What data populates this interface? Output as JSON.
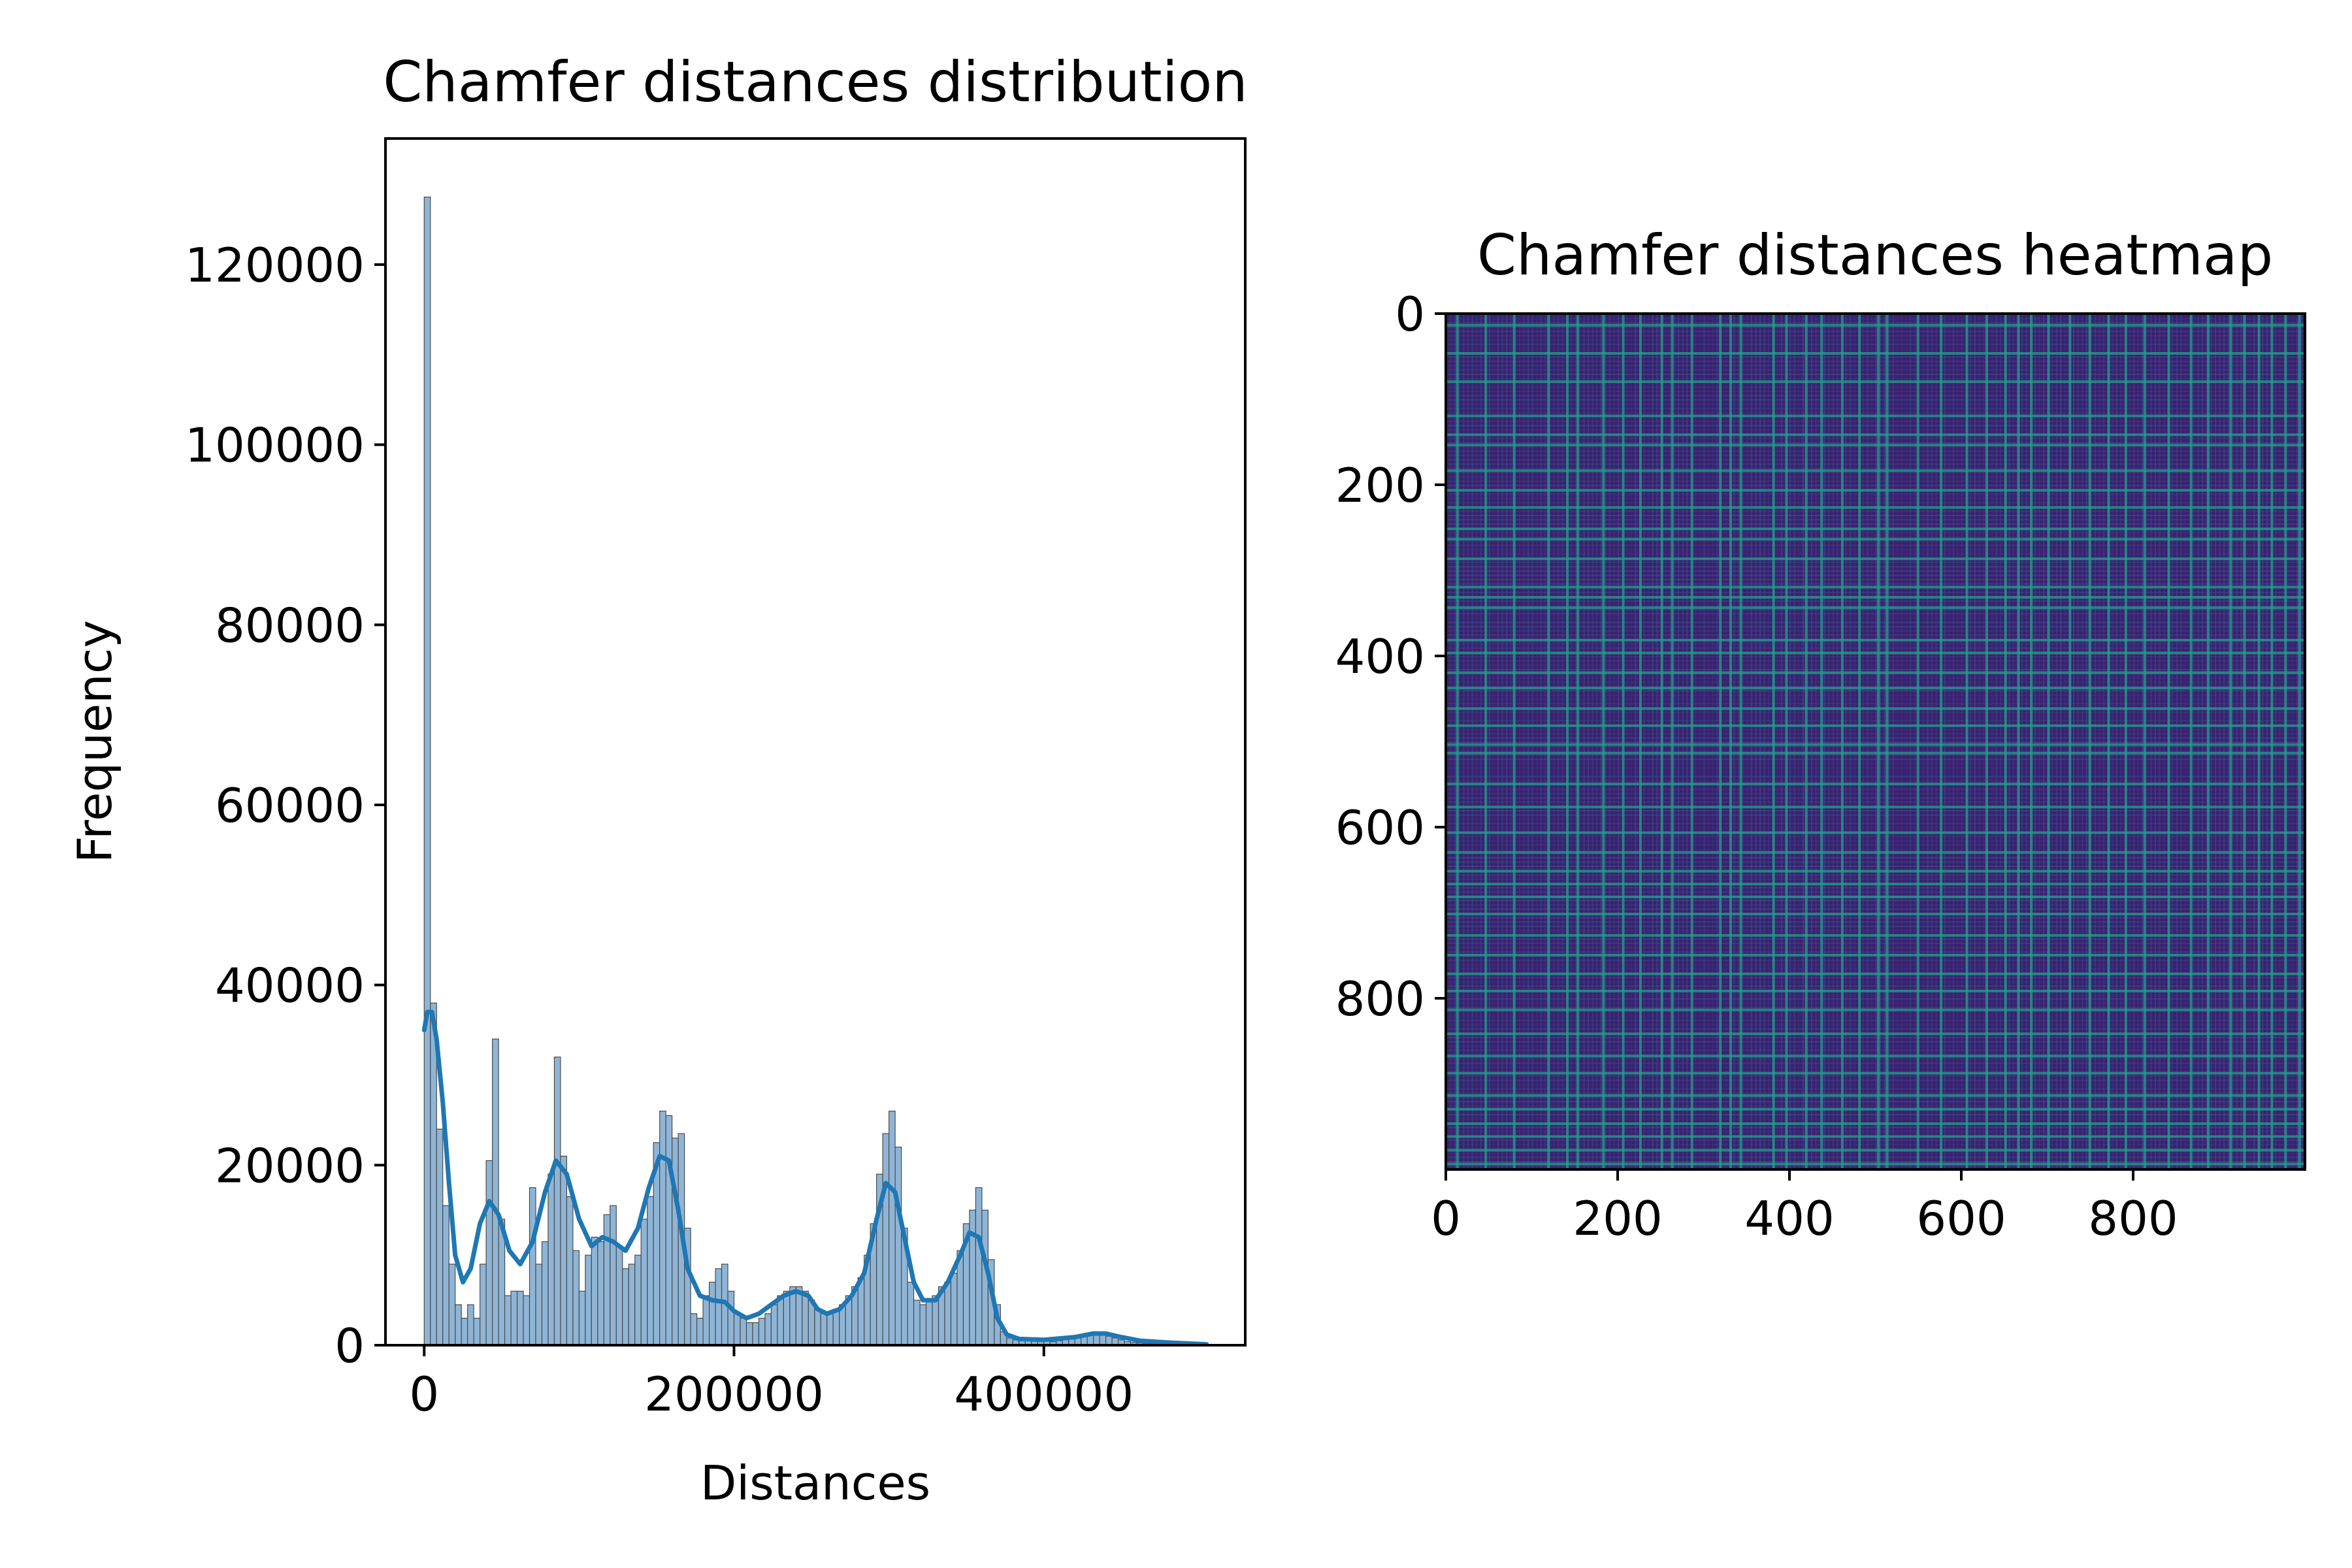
{
  "chart_data": [
    {
      "type": "histogram",
      "title": "Chamfer distances distribution",
      "xlabel": "Distances",
      "ylabel": "Frequency",
      "xlim": [
        -25000,
        530000
      ],
      "ylim": [
        0,
        134000
      ],
      "xticks": [
        0,
        200000,
        400000
      ],
      "yticks": [
        0,
        20000,
        40000,
        60000,
        80000,
        100000,
        120000
      ],
      "bar_color": "#8fb5d6",
      "bar_edge_color": "#4a4a4a",
      "kde_color": "#1f77b4",
      "bin_width": 4000,
      "bins": [
        [
          0,
          127500
        ],
        [
          4000,
          38000
        ],
        [
          8000,
          24000
        ],
        [
          12000,
          15500
        ],
        [
          16000,
          9000
        ],
        [
          20000,
          4500
        ],
        [
          24000,
          3000
        ],
        [
          28000,
          4500
        ],
        [
          32000,
          3000
        ],
        [
          36000,
          9000
        ],
        [
          40000,
          20500
        ],
        [
          44000,
          34000
        ],
        [
          48000,
          14000
        ],
        [
          52000,
          5500
        ],
        [
          56000,
          6000
        ],
        [
          60000,
          6000
        ],
        [
          64000,
          5500
        ],
        [
          68000,
          17500
        ],
        [
          72000,
          9000
        ],
        [
          76000,
          11500
        ],
        [
          80000,
          19000
        ],
        [
          84000,
          32000
        ],
        [
          88000,
          21000
        ],
        [
          92000,
          16500
        ],
        [
          96000,
          10500
        ],
        [
          100000,
          6000
        ],
        [
          104000,
          10000
        ],
        [
          108000,
          12000
        ],
        [
          112000,
          11500
        ],
        [
          116000,
          14500
        ],
        [
          120000,
          15500
        ],
        [
          124000,
          11000
        ],
        [
          128000,
          8500
        ],
        [
          132000,
          9000
        ],
        [
          136000,
          10000
        ],
        [
          140000,
          14000
        ],
        [
          144000,
          16500
        ],
        [
          148000,
          22500
        ],
        [
          152000,
          26000
        ],
        [
          156000,
          25500
        ],
        [
          160000,
          23000
        ],
        [
          164000,
          23500
        ],
        [
          168000,
          13000
        ],
        [
          172000,
          3500
        ],
        [
          176000,
          3000
        ],
        [
          180000,
          5500
        ],
        [
          184000,
          7000
        ],
        [
          188000,
          8500
        ],
        [
          192000,
          9000
        ],
        [
          196000,
          6000
        ],
        [
          200000,
          3500
        ],
        [
          204000,
          3000
        ],
        [
          208000,
          2500
        ],
        [
          212000,
          2500
        ],
        [
          216000,
          3000
        ],
        [
          220000,
          3500
        ],
        [
          224000,
          4500
        ],
        [
          228000,
          5500
        ],
        [
          232000,
          6000
        ],
        [
          236000,
          6500
        ],
        [
          240000,
          6500
        ],
        [
          244000,
          6000
        ],
        [
          248000,
          5000
        ],
        [
          252000,
          4000
        ],
        [
          256000,
          3500
        ],
        [
          260000,
          3500
        ],
        [
          264000,
          4000
        ],
        [
          268000,
          4500
        ],
        [
          272000,
          5500
        ],
        [
          276000,
          6500
        ],
        [
          280000,
          7500
        ],
        [
          284000,
          10000
        ],
        [
          288000,
          13500
        ],
        [
          292000,
          19000
        ],
        [
          296000,
          23500
        ],
        [
          300000,
          26000
        ],
        [
          304000,
          22000
        ],
        [
          308000,
          13000
        ],
        [
          312000,
          7000
        ],
        [
          316000,
          5000
        ],
        [
          320000,
          4500
        ],
        [
          324000,
          5000
        ],
        [
          328000,
          5500
        ],
        [
          332000,
          6500
        ],
        [
          336000,
          7000
        ],
        [
          340000,
          8000
        ],
        [
          344000,
          10500
        ],
        [
          348000,
          13500
        ],
        [
          352000,
          15000
        ],
        [
          356000,
          17500
        ],
        [
          360000,
          15000
        ],
        [
          364000,
          9500
        ],
        [
          368000,
          4500
        ],
        [
          372000,
          1500
        ],
        [
          376000,
          800
        ],
        [
          380000,
          600
        ],
        [
          384000,
          500
        ],
        [
          388000,
          500
        ],
        [
          392000,
          500
        ],
        [
          396000,
          500
        ],
        [
          400000,
          500
        ],
        [
          404000,
          400
        ],
        [
          408000,
          500
        ],
        [
          412000,
          600
        ],
        [
          416000,
          700
        ],
        [
          420000,
          800
        ],
        [
          424000,
          1000
        ],
        [
          428000,
          1100
        ],
        [
          432000,
          1200
        ],
        [
          436000,
          1200
        ],
        [
          440000,
          1000
        ],
        [
          444000,
          800
        ],
        [
          448000,
          600
        ],
        [
          452000,
          400
        ],
        [
          456000,
          300
        ],
        [
          460000,
          250
        ],
        [
          464000,
          200
        ],
        [
          468000,
          150
        ],
        [
          472000,
          120
        ],
        [
          476000,
          100
        ],
        [
          480000,
          80
        ],
        [
          484000,
          60
        ],
        [
          488000,
          50
        ],
        [
          492000,
          40
        ],
        [
          496000,
          30
        ],
        [
          500000,
          20
        ],
        [
          504000,
          10
        ]
      ],
      "kde": [
        [
          0,
          35000
        ],
        [
          2000,
          37000
        ],
        [
          5000,
          37000
        ],
        [
          8000,
          34000
        ],
        [
          12000,
          27000
        ],
        [
          16000,
          18000
        ],
        [
          20000,
          10000
        ],
        [
          25000,
          7000
        ],
        [
          30000,
          8500
        ],
        [
          36000,
          13500
        ],
        [
          42000,
          16000
        ],
        [
          48000,
          14500
        ],
        [
          55000,
          10500
        ],
        [
          62000,
          9000
        ],
        [
          70000,
          11500
        ],
        [
          78000,
          17000
        ],
        [
          85000,
          20500
        ],
        [
          92000,
          19000
        ],
        [
          100000,
          14000
        ],
        [
          108000,
          11000
        ],
        [
          115000,
          12000
        ],
        [
          122000,
          11500
        ],
        [
          130000,
          10500
        ],
        [
          138000,
          13000
        ],
        [
          145000,
          17500
        ],
        [
          152000,
          21000
        ],
        [
          158000,
          20500
        ],
        [
          164000,
          15000
        ],
        [
          170000,
          8500
        ],
        [
          178000,
          5500
        ],
        [
          186000,
          5000
        ],
        [
          194000,
          4800
        ],
        [
          200000,
          3800
        ],
        [
          208000,
          3000
        ],
        [
          216000,
          3500
        ],
        [
          224000,
          4500
        ],
        [
          232000,
          5500
        ],
        [
          240000,
          6000
        ],
        [
          248000,
          5500
        ],
        [
          254000,
          4000
        ],
        [
          260000,
          3500
        ],
        [
          268000,
          4000
        ],
        [
          276000,
          5500
        ],
        [
          284000,
          8000
        ],
        [
          292000,
          14000
        ],
        [
          298000,
          18000
        ],
        [
          304000,
          17000
        ],
        [
          310000,
          12000
        ],
        [
          316000,
          7000
        ],
        [
          322000,
          5000
        ],
        [
          330000,
          5000
        ],
        [
          338000,
          7000
        ],
        [
          346000,
          10000
        ],
        [
          352000,
          12500
        ],
        [
          358000,
          12000
        ],
        [
          364000,
          8000
        ],
        [
          370000,
          3000
        ],
        [
          376000,
          1200
        ],
        [
          384000,
          700
        ],
        [
          400000,
          600
        ],
        [
          420000,
          900
        ],
        [
          432000,
          1300
        ],
        [
          440000,
          1300
        ],
        [
          450000,
          900
        ],
        [
          462000,
          500
        ],
        [
          480000,
          300
        ],
        [
          505000,
          100
        ]
      ]
    },
    {
      "type": "heatmap",
      "title": "Chamfer distances heatmap",
      "size": 1000,
      "xlim": [
        0,
        1000
      ],
      "ylim": [
        1000,
        0
      ],
      "xticks": [
        0,
        200,
        400,
        600,
        800
      ],
      "yticks": [
        0,
        200,
        400,
        600,
        800
      ],
      "colormap": "viridis",
      "colors": {
        "low": "#3b1f70",
        "mid": "#3b5c8c",
        "high": "#22a18a"
      },
      "highlighted_rows_cols": [
        12,
        45,
        78,
        118,
        140,
        152,
        182,
        205,
        225,
        250,
        262,
        285,
        318,
        330,
        342,
        380,
        395,
        418,
        436,
        460,
        480,
        502,
        512,
        548,
        575,
        605,
        628,
        650,
        665,
        680,
        700,
        725,
        748,
        770,
        790,
        812,
        840,
        866,
        886,
        912,
        928,
        945,
        960,
        976,
        992
      ]
    }
  ]
}
